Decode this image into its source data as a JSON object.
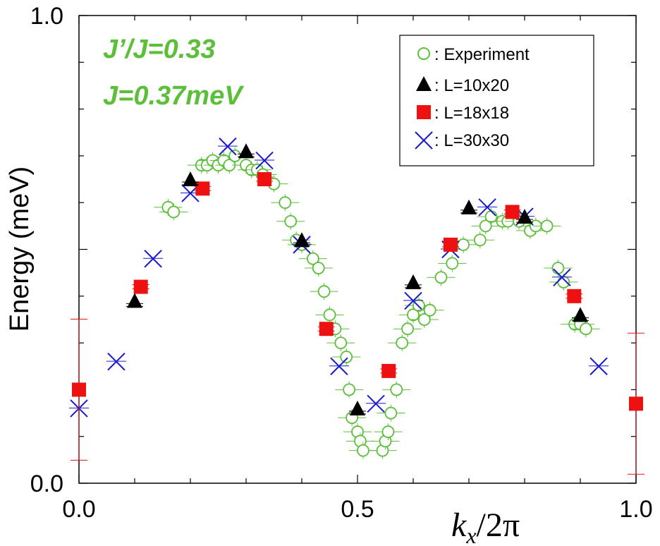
{
  "chart_data": {
    "type": "scatter",
    "title": "",
    "xlabel": "k_x/2π",
    "xlabel_parts": {
      "k": "k",
      "sub": "x",
      "rest": "/2π"
    },
    "ylabel": "Energy (meV)",
    "xlim": [
      0,
      1
    ],
    "ylim": [
      0,
      1
    ],
    "x_ticks": [
      0.0,
      0.1,
      0.2,
      0.3,
      0.4,
      0.5,
      0.6,
      0.7,
      0.8,
      0.9,
      1.0
    ],
    "x_tick_labels": [
      "0.0",
      "0.5",
      "1.0"
    ],
    "x_tick_label_values": [
      0.0,
      0.5,
      1.0
    ],
    "y_ticks": [
      0.0,
      0.1,
      0.2,
      0.3,
      0.4,
      0.5,
      0.6,
      0.7,
      0.8,
      0.9,
      1.0
    ],
    "y_tick_labels": [
      "0.0",
      "1.0"
    ],
    "y_tick_label_values": [
      0.0,
      1.0
    ],
    "grid": false,
    "legend_position": "top-right",
    "annotations": [
      "J’/J=0.33",
      "J=0.37meV"
    ],
    "colors": {
      "experiment": "#5cbf3a",
      "l10x20": "#000000",
      "l18x18": "#ee1111",
      "l30x30": "#1a1acc",
      "annotation": "#5cbf3a"
    },
    "series": [
      {
        "name": "Experiment",
        "legend_label": ": Experiment",
        "marker": "open-circle",
        "points": [
          [
            0.16,
            0.59
          ],
          [
            0.17,
            0.58
          ],
          [
            0.22,
            0.68
          ],
          [
            0.23,
            0.68
          ],
          [
            0.24,
            0.69
          ],
          [
            0.25,
            0.68
          ],
          [
            0.26,
            0.69
          ],
          [
            0.27,
            0.68
          ],
          [
            0.28,
            0.7
          ],
          [
            0.3,
            0.68
          ],
          [
            0.31,
            0.67
          ],
          [
            0.32,
            0.67
          ],
          [
            0.33,
            0.66
          ],
          [
            0.35,
            0.64
          ],
          [
            0.37,
            0.6
          ],
          [
            0.38,
            0.56
          ],
          [
            0.39,
            0.52
          ],
          [
            0.4,
            0.51
          ],
          [
            0.42,
            0.48
          ],
          [
            0.43,
            0.46
          ],
          [
            0.44,
            0.41
          ],
          [
            0.45,
            0.36
          ],
          [
            0.46,
            0.33
          ],
          [
            0.47,
            0.3
          ],
          [
            0.48,
            0.27
          ],
          [
            0.485,
            0.2
          ],
          [
            0.49,
            0.14
          ],
          [
            0.5,
            0.11
          ],
          [
            0.505,
            0.09
          ],
          [
            0.51,
            0.07
          ],
          [
            0.545,
            0.07
          ],
          [
            0.55,
            0.09
          ],
          [
            0.555,
            0.11
          ],
          [
            0.56,
            0.15
          ],
          [
            0.57,
            0.2
          ],
          [
            0.58,
            0.3
          ],
          [
            0.59,
            0.33
          ],
          [
            0.6,
            0.36
          ],
          [
            0.61,
            0.38
          ],
          [
            0.62,
            0.35
          ],
          [
            0.63,
            0.37
          ],
          [
            0.65,
            0.44
          ],
          [
            0.67,
            0.47
          ],
          [
            0.69,
            0.51
          ],
          [
            0.72,
            0.52
          ],
          [
            0.73,
            0.55
          ],
          [
            0.74,
            0.57
          ],
          [
            0.76,
            0.56
          ],
          [
            0.77,
            0.56
          ],
          [
            0.79,
            0.56
          ],
          [
            0.81,
            0.54
          ],
          [
            0.82,
            0.55
          ],
          [
            0.84,
            0.55
          ],
          [
            0.86,
            0.46
          ],
          [
            0.87,
            0.43
          ],
          [
            0.89,
            0.34
          ],
          [
            0.9,
            0.34
          ],
          [
            0.91,
            0.33
          ]
        ]
      },
      {
        "name": "L=10x20",
        "legend_label": ": L=10x20",
        "marker": "filled-triangle",
        "points": [
          [
            0.1,
            0.39
          ],
          [
            0.2,
            0.65
          ],
          [
            0.3,
            0.71
          ],
          [
            0.4,
            0.52
          ],
          [
            0.5,
            0.16
          ],
          [
            0.6,
            0.43
          ],
          [
            0.7,
            0.59
          ],
          [
            0.8,
            0.57
          ],
          [
            0.9,
            0.36
          ]
        ]
      },
      {
        "name": "L=18x18",
        "legend_label": ": L=18x18",
        "marker": "filled-square",
        "points": [
          [
            0.0,
            0.2
          ],
          [
            0.111,
            0.42
          ],
          [
            0.222,
            0.63
          ],
          [
            0.333,
            0.65
          ],
          [
            0.444,
            0.33
          ],
          [
            0.556,
            0.24
          ],
          [
            0.667,
            0.51
          ],
          [
            0.778,
            0.58
          ],
          [
            0.889,
            0.4
          ],
          [
            1.0,
            0.17
          ]
        ]
      },
      {
        "name": "L=30x30",
        "legend_label": ": L=30x30",
        "marker": "cross",
        "points": [
          [
            0.0,
            0.16
          ],
          [
            0.067,
            0.26
          ],
          [
            0.133,
            0.48
          ],
          [
            0.2,
            0.62
          ],
          [
            0.267,
            0.72
          ],
          [
            0.333,
            0.69
          ],
          [
            0.4,
            0.51
          ],
          [
            0.467,
            0.25
          ],
          [
            0.533,
            0.17
          ],
          [
            0.6,
            0.39
          ],
          [
            0.667,
            0.5
          ],
          [
            0.733,
            0.59
          ],
          [
            0.8,
            0.57
          ],
          [
            0.867,
            0.44
          ],
          [
            0.933,
            0.25
          ]
        ]
      }
    ]
  }
}
